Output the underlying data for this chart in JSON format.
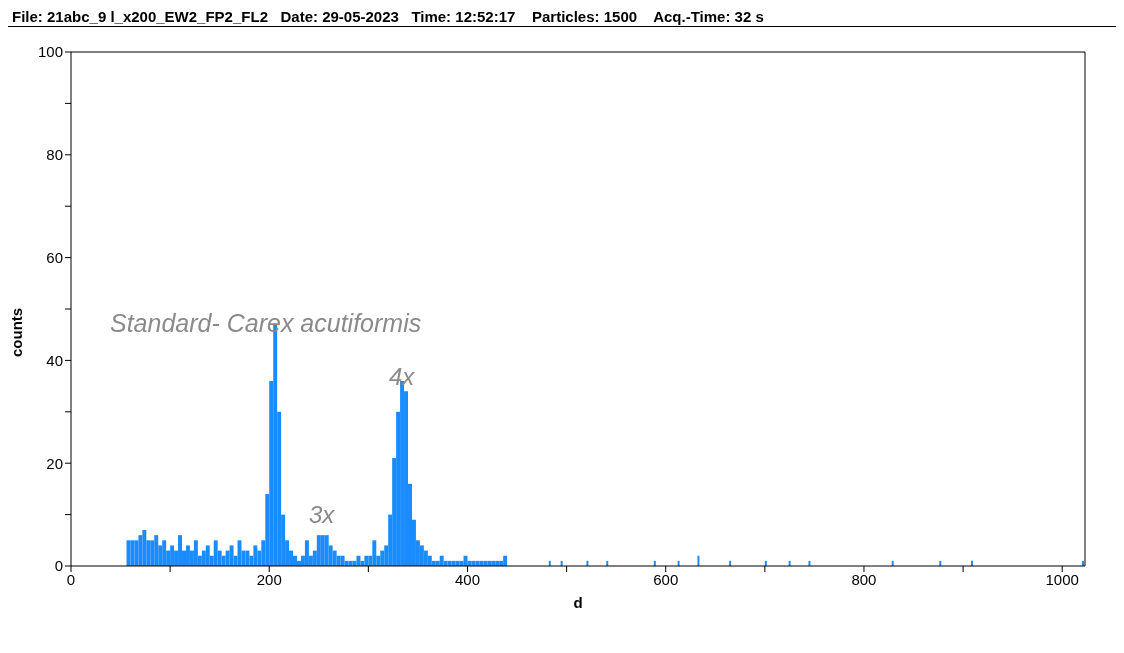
{
  "chart_data": {
    "type": "histogram",
    "title": "File: 21abc_9 l_x200_EW2_FP2_FL2   Date: 29-05-2023   Time: 12:52:17    Particles: 1500    Acq.-Time: 32 s",
    "xlabel": "d",
    "ylabel": "counts",
    "color": "#1a8cff",
    "bins": [
      56,
      60,
      64,
      68,
      72,
      76,
      80,
      84,
      88,
      92,
      96,
      100,
      104,
      108,
      112,
      116,
      120,
      124,
      128,
      132,
      136,
      140,
      144,
      148,
      152,
      156,
      160,
      164,
      168,
      172,
      176,
      180,
      184,
      188,
      192,
      196,
      200,
      204,
      208,
      212,
      216,
      220,
      224,
      228,
      232,
      236,
      240,
      244,
      248,
      252,
      256,
      260,
      264,
      268,
      272,
      276,
      280,
      284,
      288,
      292,
      296,
      300,
      304,
      308,
      312,
      316,
      320,
      324,
      328,
      332,
      336,
      340,
      344,
      348,
      352,
      356,
      360,
      364,
      368,
      372,
      376,
      380,
      384,
      388,
      392,
      396,
      400,
      404,
      408,
      412,
      416,
      420,
      424,
      428,
      432,
      436,
      440,
      482,
      484,
      494,
      496,
      520,
      522,
      540,
      542,
      588,
      590,
      612,
      614,
      632,
      634,
      664,
      666,
      700,
      702,
      724,
      726,
      744,
      746,
      828,
      830,
      876,
      878,
      908,
      910,
      1020,
      1022
    ],
    "values": [
      5,
      5,
      5,
      6,
      7,
      5,
      5,
      6,
      4,
      5,
      3,
      4,
      3,
      6,
      3,
      4,
      3,
      5,
      2,
      3,
      4,
      2,
      5,
      3,
      2,
      3,
      4,
      2,
      5,
      3,
      3,
      2,
      4,
      3,
      5,
      14,
      36,
      47,
      30,
      10,
      5,
      3,
      2,
      1,
      2,
      5,
      2,
      3,
      6,
      6,
      6,
      4,
      3,
      2,
      2,
      1,
      1,
      1,
      2,
      1,
      2,
      2,
      5,
      2,
      3,
      4,
      10,
      21,
      30,
      36,
      34,
      16,
      9,
      5,
      4,
      3,
      2,
      1,
      1,
      2,
      1,
      1,
      1,
      1,
      1,
      2,
      1,
      1,
      1,
      1,
      1,
      1,
      1,
      1,
      1,
      2,
      0,
      1,
      0,
      1,
      0,
      1,
      0,
      1,
      0,
      1,
      0,
      1,
      0,
      2,
      0,
      1,
      0,
      1,
      0,
      1,
      0,
      1,
      0,
      1,
      0,
      1,
      0,
      1,
      0,
      1
    ],
    "xlim": [
      0,
      1023
    ],
    "ylim": [
      0,
      100
    ],
    "xticks": [
      0,
      {
        "value": 100,
        "label": null
      },
      200,
      {
        "value": 300,
        "label": null
      },
      400,
      {
        "value": 500,
        "label": null
      },
      600,
      {
        "value": 700,
        "label": null
      },
      800,
      {
        "value": 900,
        "label": null
      },
      1000
    ],
    "yticks": [
      0,
      {
        "value": 10,
        "label": null
      },
      20,
      {
        "value": 30,
        "label": null
      },
      40,
      {
        "value": 50,
        "label": null
      },
      60,
      {
        "value": 70,
        "label": null
      },
      80,
      {
        "value": 90,
        "label": null
      },
      100
    ],
    "annotations": [
      "Standard- Carex acutiformis",
      "3x",
      "4x"
    ]
  }
}
